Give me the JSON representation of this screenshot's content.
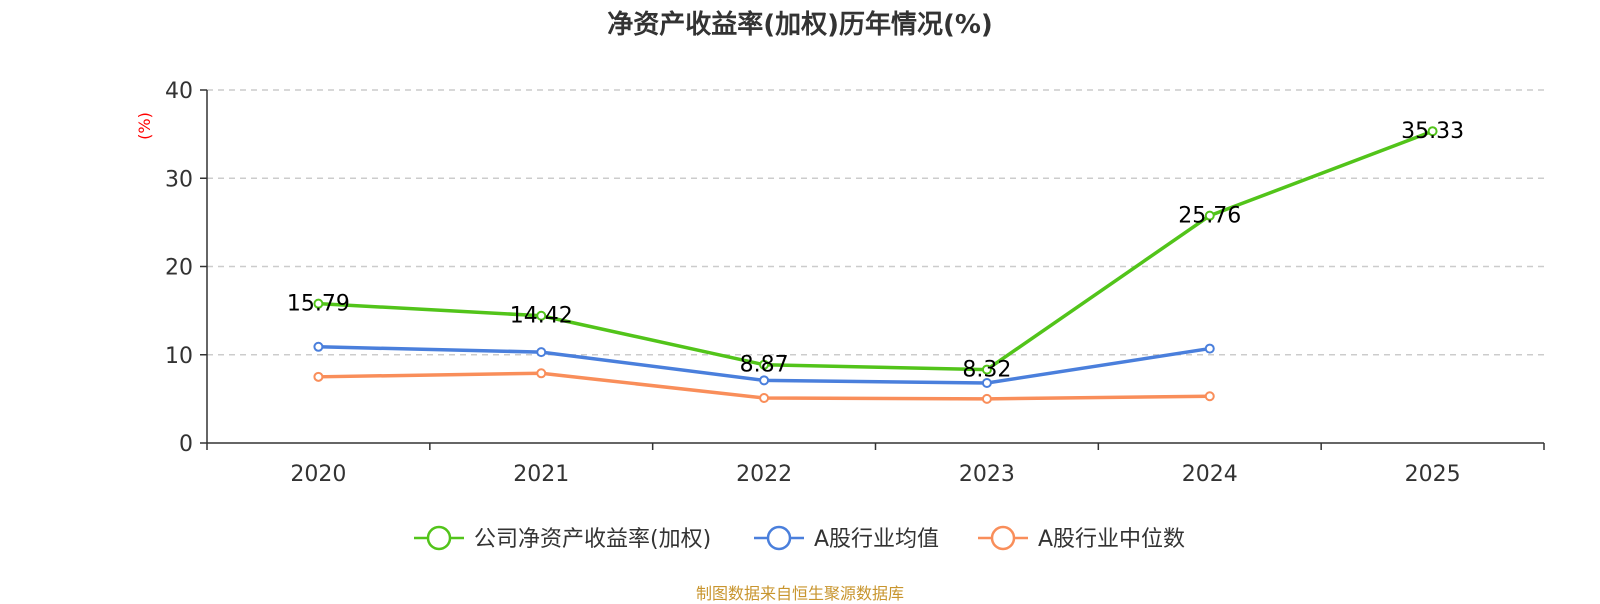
{
  "chart_data": {
    "type": "line",
    "title": "净资产收益率(加权)历年情况(%)",
    "ylabel": "(%)",
    "ylim": [
      0,
      40
    ],
    "yticks": [
      0,
      10,
      20,
      30,
      40
    ],
    "categories": [
      "2020",
      "2021",
      "2022",
      "2023",
      "2024",
      "2025"
    ],
    "series": [
      {
        "name": "公司净资产收益率(加权)",
        "color": "#52c41a",
        "values": [
          15.79,
          14.42,
          8.87,
          8.32,
          25.76,
          35.33
        ],
        "labels": [
          "15.79",
          "14.42",
          "8.87",
          "8.32",
          "25.76",
          "35.33"
        ]
      },
      {
        "name": "A股行业均值",
        "color": "#4a7fdc",
        "values": [
          10.9,
          10.3,
          7.1,
          6.8,
          10.7,
          null
        ]
      },
      {
        "name": "A股行业中位数",
        "color": "#f98e5a",
        "values": [
          7.5,
          7.9,
          5.1,
          5.0,
          5.3,
          null
        ]
      }
    ],
    "grid": "horizontal-dashed",
    "legend_position": "bottom"
  },
  "source": "制图数据来自恒生聚源数据库",
  "colors": {
    "axis": "#333333",
    "grid": "#cccccc",
    "unit": "#ff0000",
    "source": "#c8952e"
  }
}
